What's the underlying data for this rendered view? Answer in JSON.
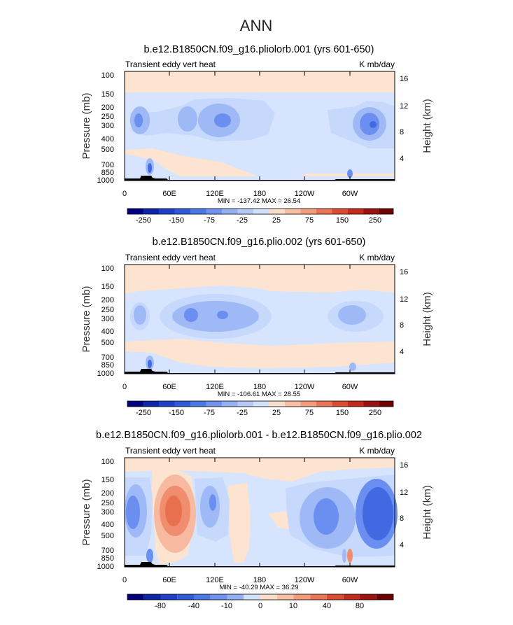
{
  "chart_data": {
    "type": "heatmap",
    "title": "ANN",
    "colors": {
      "blue_strong": "#4169e1",
      "blue_mid": "#6a8ff0",
      "blue_soft": "#9fb8f6",
      "blue_pale": "#c6d8fb",
      "blue_faint": "#d6e4fd",
      "cream": "#fde4d0",
      "salmon_light": "#f7b9a0",
      "salmon": "#f08d6e",
      "salmon_dark": "#e8704e",
      "terrain": "#000000"
    },
    "colorbar_colors": [
      "#000080",
      "#0d26a8",
      "#1f3fcc",
      "#2f5ad9",
      "#4a78e6",
      "#6f93ee",
      "#93b0f3",
      "#b5c9f7",
      "#d3e0fb",
      "#f8ddc9",
      "#f7bfa3",
      "#f29c7c",
      "#ea7556",
      "#dc4c31",
      "#c32a1c",
      "#9b120e",
      "#6e0000"
    ],
    "panels": [
      {
        "title": "b.e12.B1850CN.f09_g16.pliolorb.001 (yrs 601-650)",
        "subtitle_left": "Transient eddy vert heat",
        "subtitle_right": "K mb/day",
        "ylabel": "Pressure  (mb)",
        "y2label": "Height  (km)",
        "xticks": [
          "0",
          "60E",
          "120E",
          "180",
          "120W",
          "60W"
        ],
        "yticks": [
          "100",
          "150",
          "200",
          "250",
          "300",
          "400",
          "500",
          "700",
          "850",
          "1000"
        ],
        "y2ticks": [
          "16",
          "12",
          "8",
          "4"
        ],
        "min_max": "MIN = -137.42   MAX =   26.54",
        "cbar_labels": [
          "-250",
          "-150",
          "-75",
          "-25",
          "25",
          "75",
          "150",
          "250"
        ],
        "min": -137.42,
        "max": 26.54
      },
      {
        "title": "b.e12.B1850CN.f09_g16.plio.002 (yrs 601-650)",
        "subtitle_left": "Transient eddy vert heat",
        "subtitle_right": "K mb/day",
        "ylabel": "Pressure  (mb)",
        "y2label": "Height  (km)",
        "xticks": [
          "0",
          "60E",
          "120E",
          "180",
          "120W",
          "60W"
        ],
        "yticks": [
          "100",
          "150",
          "200",
          "250",
          "300",
          "400",
          "500",
          "700",
          "850",
          "1000"
        ],
        "y2ticks": [
          "16",
          "12",
          "8",
          "4"
        ],
        "min_max": "MIN = -106.61   MAX =   28.55",
        "cbar_labels": [
          "-250",
          "-150",
          "-75",
          "-25",
          "25",
          "75",
          "150",
          "250"
        ],
        "min": -106.61,
        "max": 28.55
      },
      {
        "title": "b.e12.B1850CN.f09_g16.pliolorb.001 - b.e12.B1850CN.f09_g16.plio.002",
        "subtitle_left": "Transient eddy vert heat",
        "subtitle_right": "K mb/day",
        "ylabel": "Pressure  (mb)",
        "y2label": "Height  (km)",
        "xticks": [
          "0",
          "60E",
          "120E",
          "180",
          "120W",
          "60W"
        ],
        "yticks": [
          "100",
          "150",
          "200",
          "250",
          "300",
          "400",
          "500",
          "700",
          "850",
          "1000"
        ],
        "y2ticks": [
          "16",
          "12",
          "8",
          "4"
        ],
        "min_max": "MIN = -40.29   MAX =   36.29",
        "cbar_labels": [
          "-80",
          "-40",
          "-10",
          "0",
          "10",
          "40",
          "80"
        ],
        "min": -40.29,
        "max": 36.29
      }
    ]
  }
}
